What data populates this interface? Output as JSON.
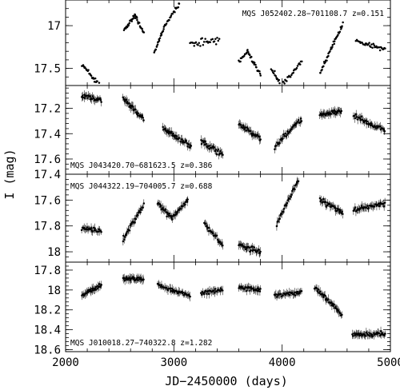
{
  "chart_data": {
    "type": "scatter",
    "xlabel": "JD−2450000 (days)",
    "ylabel": "I (mag)",
    "xlim": [
      2000,
      5000
    ],
    "x_ticks": [
      "2000",
      "3000",
      "4000",
      "5000"
    ],
    "y_inverted": true,
    "shared_x": true,
    "panels": [
      {
        "label": "MQS J052402.28−701108.7   z=0.151",
        "label_position": "top-right",
        "ylim": [
          16.7,
          17.7
        ],
        "y_ticks": [
          {
            "value": 17.0,
            "label": "17"
          },
          {
            "value": 17.5,
            "label": "17.5"
          }
        ],
        "error_bars": false,
        "segments": [
          {
            "x": [
              2150,
              2330
            ],
            "y": [
              17.45,
              17.72
            ],
            "n": 30,
            "scatter": 0.04
          },
          {
            "x": [
              2540,
              2640
            ],
            "y": [
              17.05,
              16.88
            ],
            "n": 26,
            "scatter": 0.03
          },
          {
            "x": [
              2640,
              2720
            ],
            "y": [
              16.88,
              17.08
            ],
            "n": 18,
            "scatter": 0.03
          },
          {
            "x": [
              2820,
              2920
            ],
            "y": [
              17.32,
              16.98
            ],
            "n": 22,
            "scatter": 0.03
          },
          {
            "x": [
              2920,
              3050
            ],
            "y": [
              16.98,
              16.75
            ],
            "n": 22,
            "scatter": 0.03
          },
          {
            "x": [
              3150,
              3420
            ],
            "y": [
              17.22,
              17.18
            ],
            "n": 30,
            "scatter": 0.06
          },
          {
            "x": [
              3600,
              3680
            ],
            "y": [
              17.42,
              17.3
            ],
            "n": 14,
            "scatter": 0.03
          },
          {
            "x": [
              3680,
              3800
            ],
            "y": [
              17.3,
              17.58
            ],
            "n": 24,
            "scatter": 0.04
          },
          {
            "x": [
              3900,
              4000
            ],
            "y": [
              17.5,
              17.72
            ],
            "n": 18,
            "scatter": 0.04
          },
          {
            "x": [
              4000,
              4180
            ],
            "y": [
              17.7,
              17.42
            ],
            "n": 26,
            "scatter": 0.04
          },
          {
            "x": [
              4350,
              4560
            ],
            "y": [
              17.55,
              16.98
            ],
            "n": 40,
            "scatter": 0.04
          },
          {
            "x": [
              4680,
              4950
            ],
            "y": [
              17.18,
              17.28
            ],
            "n": 36,
            "scatter": 0.04
          }
        ]
      },
      {
        "label": "MQS J043420.70−681623.5   z=0.386",
        "label_position": "bottom-left",
        "ylim": [
          17.02,
          17.72
        ],
        "y_ticks": [
          {
            "value": 17.2,
            "label": "17.2"
          },
          {
            "value": 17.4,
            "label": "17.4"
          },
          {
            "value": 17.6,
            "label": "17.6"
          }
        ],
        "error_bars": true,
        "segments": [
          {
            "x": [
              2150,
              2330
            ],
            "y": [
              17.1,
              17.14
            ],
            "n": 28,
            "scatter": 0.025
          },
          {
            "x": [
              2530,
              2720
            ],
            "y": [
              17.12,
              17.28
            ],
            "n": 32,
            "scatter": 0.025
          },
          {
            "x": [
              2900,
              3050
            ],
            "y": [
              17.36,
              17.44
            ],
            "n": 26,
            "scatter": 0.03
          },
          {
            "x": [
              3060,
              3160
            ],
            "y": [
              17.44,
              17.5
            ],
            "n": 16,
            "scatter": 0.03
          },
          {
            "x": [
              3250,
              3450
            ],
            "y": [
              17.46,
              17.56
            ],
            "n": 30,
            "scatter": 0.035
          },
          {
            "x": [
              3600,
              3800
            ],
            "y": [
              17.32,
              17.44
            ],
            "n": 32,
            "scatter": 0.03
          },
          {
            "x": [
              3930,
              4000
            ],
            "y": [
              17.52,
              17.44
            ],
            "n": 10,
            "scatter": 0.04
          },
          {
            "x": [
              4000,
              4180
            ],
            "y": [
              17.44,
              17.28
            ],
            "n": 26,
            "scatter": 0.03
          },
          {
            "x": [
              4350,
              4550
            ],
            "y": [
              17.25,
              17.22
            ],
            "n": 34,
            "scatter": 0.025
          },
          {
            "x": [
              4660,
              4950
            ],
            "y": [
              17.26,
              17.38
            ],
            "n": 40,
            "scatter": 0.03
          }
        ]
      },
      {
        "label": "MQS J044322.19−704005.7   z=0.688",
        "label_position": "top-left",
        "ylim": [
          17.4,
          18.08
        ],
        "y_ticks": [
          {
            "value": 17.4,
            "label": "17.4"
          },
          {
            "value": 17.6,
            "label": "17.6"
          },
          {
            "value": 17.8,
            "label": "17.8"
          },
          {
            "value": 18.0,
            "label": "18"
          }
        ],
        "error_bars": true,
        "segments": [
          {
            "x": [
              2150,
              2330
            ],
            "y": [
              17.82,
              17.84
            ],
            "n": 26,
            "scatter": 0.025
          },
          {
            "x": [
              2530,
              2720
            ],
            "y": [
              17.9,
              17.64
            ],
            "n": 30,
            "scatter": 0.03
          },
          {
            "x": [
              2850,
              2980
            ],
            "y": [
              17.62,
              17.74
            ],
            "n": 22,
            "scatter": 0.03
          },
          {
            "x": [
              2980,
              3130
            ],
            "y": [
              17.74,
              17.6
            ],
            "n": 24,
            "scatter": 0.025
          },
          {
            "x": [
              3280,
              3450
            ],
            "y": [
              17.78,
              17.95
            ],
            "n": 26,
            "scatter": 0.03
          },
          {
            "x": [
              3600,
              3800
            ],
            "y": [
              17.95,
              18.0
            ],
            "n": 32,
            "scatter": 0.035
          },
          {
            "x": [
              3950,
              4150
            ],
            "y": [
              17.78,
              17.45
            ],
            "n": 30,
            "scatter": 0.03
          },
          {
            "x": [
              4350,
              4560
            ],
            "y": [
              17.6,
              17.7
            ],
            "n": 34,
            "scatter": 0.03
          },
          {
            "x": [
              4660,
              4950
            ],
            "y": [
              17.68,
              17.63
            ],
            "n": 40,
            "scatter": 0.03
          }
        ]
      },
      {
        "label": "MQS J010018.27−740322.8   z=1.282",
        "label_position": "bottom-left",
        "ylim": [
          17.72,
          18.62
        ],
        "y_ticks": [
          {
            "value": 17.8,
            "label": "17.8"
          },
          {
            "value": 18.0,
            "label": "18"
          },
          {
            "value": 18.2,
            "label": "18.2"
          },
          {
            "value": 18.4,
            "label": "18.4"
          },
          {
            "value": 18.6,
            "label": "18.6"
          }
        ],
        "error_bars": true,
        "segments": [
          {
            "x": [
              2150,
              2330
            ],
            "y": [
              18.05,
              17.95
            ],
            "n": 30,
            "scatter": 0.03
          },
          {
            "x": [
              2530,
              2720
            ],
            "y": [
              17.88,
              17.9
            ],
            "n": 32,
            "scatter": 0.025
          },
          {
            "x": [
              2850,
              3150
            ],
            "y": [
              17.95,
              18.06
            ],
            "n": 42,
            "scatter": 0.03
          },
          {
            "x": [
              3250,
              3450
            ],
            "y": [
              18.03,
              18.0
            ],
            "n": 28,
            "scatter": 0.035
          },
          {
            "x": [
              3600,
              3800
            ],
            "y": [
              17.98,
              18.0
            ],
            "n": 32,
            "scatter": 0.03
          },
          {
            "x": [
              3930,
              4180
            ],
            "y": [
              18.06,
              18.02
            ],
            "n": 36,
            "scatter": 0.03
          },
          {
            "x": [
              4300,
              4550
            ],
            "y": [
              17.97,
              18.25
            ],
            "n": 40,
            "scatter": 0.035
          },
          {
            "x": [
              4650,
              4950
            ],
            "y": [
              18.45,
              18.44
            ],
            "n": 46,
            "scatter": 0.04
          }
        ]
      }
    ]
  }
}
